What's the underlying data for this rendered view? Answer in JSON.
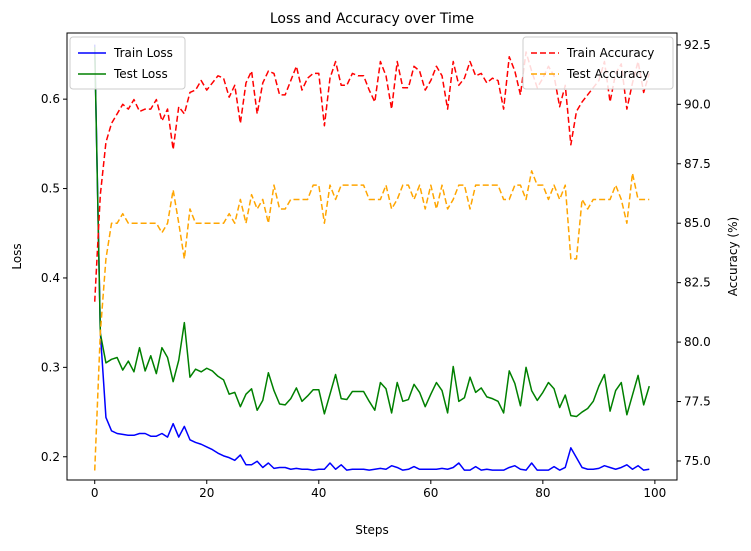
{
  "chart_data": {
    "type": "line",
    "title": "Loss and Accuracy over Time",
    "xlabel": "Steps",
    "ylabel_left": "Loss",
    "ylabel_right": "Accuracy (%)",
    "xlim": [
      -4.95,
      103.95
    ],
    "ylim_left": [
      0.174,
      0.674
    ],
    "ylim_right": [
      74.2,
      93.0
    ],
    "x_ticks": [
      0,
      20,
      40,
      60,
      80,
      100
    ],
    "y_left_ticks": [
      0.2,
      0.3,
      0.4,
      0.5,
      0.6
    ],
    "y_right_ticks": [
      75.0,
      77.5,
      80.0,
      82.5,
      85.0,
      87.5,
      90.0,
      92.5
    ],
    "legend_left": "top-left",
    "legend_right": "top-right",
    "grid": false,
    "series": [
      {
        "name": "Train Loss",
        "axis": "left",
        "color": "#0000ff",
        "dash": "solid",
        "values": [
          0.661,
          0.339,
          0.244,
          0.229,
          0.226,
          0.225,
          0.224,
          0.224,
          0.226,
          0.226,
          0.223,
          0.223,
          0.226,
          0.222,
          0.237,
          0.222,
          0.234,
          0.219,
          0.216,
          0.214,
          0.211,
          0.208,
          0.204,
          0.201,
          0.199,
          0.196,
          0.202,
          0.191,
          0.191,
          0.195,
          0.188,
          0.193,
          0.187,
          0.188,
          0.188,
          0.186,
          0.187,
          0.186,
          0.186,
          0.185,
          0.186,
          0.186,
          0.193,
          0.186,
          0.191,
          0.185,
          0.186,
          0.186,
          0.186,
          0.185,
          0.186,
          0.187,
          0.186,
          0.19,
          0.188,
          0.185,
          0.186,
          0.189,
          0.186,
          0.186,
          0.186,
          0.186,
          0.187,
          0.186,
          0.188,
          0.193,
          0.185,
          0.185,
          0.189,
          0.185,
          0.186,
          0.185,
          0.185,
          0.185,
          0.188,
          0.19,
          0.186,
          0.185,
          0.193,
          0.185,
          0.185,
          0.185,
          0.189,
          0.185,
          0.188,
          0.21,
          0.199,
          0.188,
          0.186,
          0.186,
          0.187,
          0.19,
          0.188,
          0.186,
          0.188,
          0.191,
          0.186,
          0.19,
          0.185,
          0.186
        ]
      },
      {
        "name": "Test Loss",
        "axis": "left",
        "color": "#008000",
        "dash": "solid",
        "values": [
          0.658,
          0.338,
          0.305,
          0.309,
          0.311,
          0.297,
          0.307,
          0.295,
          0.322,
          0.296,
          0.313,
          0.293,
          0.322,
          0.311,
          0.284,
          0.308,
          0.35,
          0.289,
          0.298,
          0.295,
          0.299,
          0.296,
          0.29,
          0.286,
          0.27,
          0.272,
          0.256,
          0.27,
          0.276,
          0.252,
          0.263,
          0.294,
          0.274,
          0.259,
          0.258,
          0.265,
          0.277,
          0.262,
          0.268,
          0.275,
          0.275,
          0.248,
          0.27,
          0.292,
          0.265,
          0.264,
          0.273,
          0.273,
          0.273,
          0.262,
          0.252,
          0.283,
          0.276,
          0.249,
          0.283,
          0.262,
          0.264,
          0.281,
          0.272,
          0.256,
          0.27,
          0.283,
          0.274,
          0.249,
          0.301,
          0.262,
          0.266,
          0.289,
          0.272,
          0.277,
          0.267,
          0.265,
          0.262,
          0.249,
          0.296,
          0.282,
          0.257,
          0.3,
          0.274,
          0.263,
          0.272,
          0.283,
          0.276,
          0.255,
          0.269,
          0.246,
          0.245,
          0.25,
          0.254,
          0.262,
          0.279,
          0.292,
          0.251,
          0.274,
          0.283,
          0.247,
          0.269,
          0.291,
          0.258,
          0.279
        ]
      },
      {
        "name": "Train Accuracy",
        "axis": "right",
        "color": "#ff0000",
        "dash": "dashed",
        "values": [
          81.7,
          86.2,
          88.4,
          89.2,
          89.6,
          90.0,
          89.8,
          90.2,
          89.7,
          89.8,
          89.8,
          90.2,
          89.3,
          89.8,
          88.1,
          89.9,
          89.6,
          90.5,
          90.6,
          91.0,
          90.6,
          90.9,
          91.2,
          91.1,
          90.3,
          90.8,
          89.2,
          90.9,
          91.4,
          89.6,
          90.9,
          91.4,
          91.3,
          90.4,
          90.4,
          91.0,
          91.6,
          90.6,
          91.1,
          91.3,
          91.3,
          89.1,
          91.1,
          91.8,
          90.8,
          90.8,
          91.3,
          91.2,
          91.2,
          90.6,
          90.1,
          91.8,
          91.2,
          89.8,
          91.8,
          90.7,
          90.7,
          91.6,
          91.4,
          90.6,
          91.0,
          91.6,
          91.2,
          89.8,
          91.8,
          90.8,
          91.1,
          91.8,
          91.2,
          91.3,
          90.9,
          91.1,
          91.0,
          89.8,
          92.0,
          91.4,
          90.4,
          92.2,
          91.4,
          90.7,
          91.1,
          91.6,
          91.2,
          89.9,
          90.8,
          88.3,
          89.7,
          90.1,
          90.4,
          90.7,
          91.0,
          91.8,
          90.1,
          91.3,
          91.7,
          89.8,
          90.9,
          91.8,
          90.5,
          91.3
        ]
      },
      {
        "name": "Test Accuracy",
        "axis": "right",
        "color": "#ffa500",
        "dash": "dashed",
        "values": [
          74.6,
          80.4,
          83.5,
          85.0,
          85.0,
          85.4,
          85.0,
          85.0,
          85.0,
          85.0,
          85.0,
          85.0,
          84.6,
          85.0,
          86.4,
          85.0,
          83.5,
          85.6,
          85.0,
          85.0,
          85.0,
          85.0,
          85.0,
          85.0,
          85.4,
          85.0,
          86.0,
          85.0,
          86.2,
          85.6,
          86.0,
          85.0,
          86.6,
          85.6,
          85.6,
          86.0,
          86.0,
          86.0,
          86.0,
          86.6,
          86.6,
          85.0,
          86.6,
          86.0,
          86.6,
          86.6,
          86.6,
          86.6,
          86.6,
          86.0,
          86.0,
          86.0,
          86.6,
          85.6,
          86.0,
          86.6,
          86.6,
          86.0,
          86.6,
          85.6,
          86.6,
          85.6,
          86.6,
          85.6,
          86.0,
          86.6,
          86.6,
          85.6,
          86.6,
          86.6,
          86.6,
          86.6,
          86.6,
          86.0,
          86.0,
          86.6,
          86.6,
          86.0,
          87.2,
          86.6,
          86.6,
          86.0,
          86.6,
          86.0,
          86.6,
          83.5,
          83.5,
          86.0,
          85.6,
          86.0,
          86.0,
          86.0,
          86.0,
          86.6,
          86.0,
          85.0,
          87.1,
          86.0,
          86.0,
          86.0
        ]
      }
    ]
  }
}
